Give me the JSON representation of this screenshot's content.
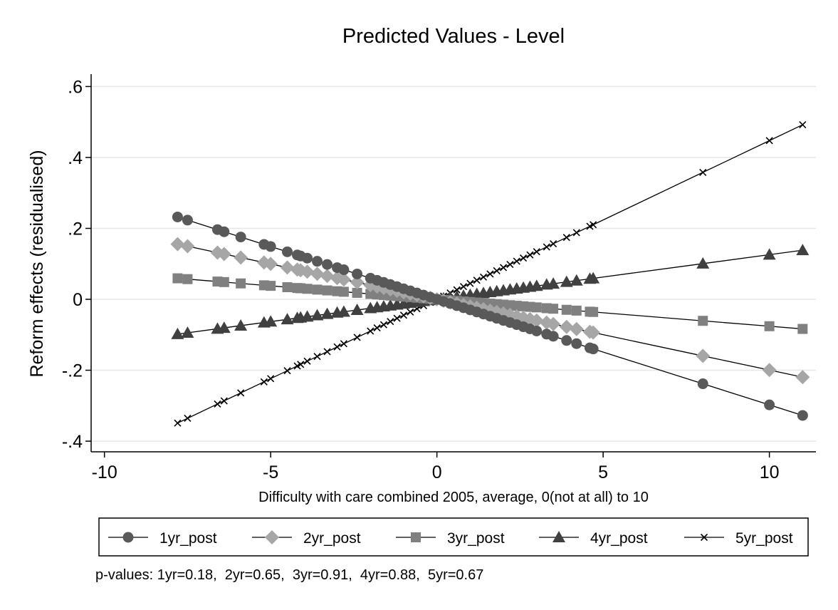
{
  "chart_data": {
    "type": "line",
    "title": "Predicted Values - Level",
    "xlabel": "Difficulty with care combined 2005, average, 0(not at all) to 10",
    "ylabel": "Reform effects (residualised)",
    "xlim": [
      -10.4,
      11.4
    ],
    "ylim": [
      -0.43,
      0.635
    ],
    "xticks": [
      -10,
      -5,
      0,
      5,
      10
    ],
    "xtick_labels": [
      "-10",
      "-5",
      "0",
      "5",
      "10"
    ],
    "yticks": [
      0.6,
      0.4,
      0.2,
      0,
      -0.2,
      -0.4
    ],
    "ytick_labels": [
      ".6",
      ".4",
      ".2",
      "0",
      "-.2",
      "-.4"
    ],
    "grid": true,
    "legend_position": "bottom",
    "x": [
      -7.8,
      -7.5,
      -6.6,
      -6.4,
      -5.9,
      -5.2,
      -5.0,
      -4.5,
      -4.2,
      -4.1,
      -3.9,
      -3.6,
      -3.3,
      -3.0,
      -2.8,
      -2.4,
      -2.0,
      -1.8,
      -1.6,
      -1.4,
      -1.2,
      -1.0,
      -0.8,
      -0.6,
      -0.4,
      -0.2,
      0.0,
      0.2,
      0.4,
      0.6,
      0.8,
      1.0,
      1.2,
      1.4,
      1.6,
      1.8,
      2.0,
      2.2,
      2.4,
      2.6,
      2.8,
      3.0,
      3.3,
      3.5,
      3.9,
      4.2,
      4.6,
      4.7,
      8.0,
      10.0,
      11.0
    ],
    "series": [
      {
        "name": "1yr_post",
        "marker": "circle",
        "color": "#595959",
        "slope": -0.02977
      },
      {
        "name": "2yr_post",
        "marker": "diamond",
        "color": "#a6a6a6",
        "slope": -0.01995
      },
      {
        "name": "3yr_post",
        "marker": "square",
        "color": "#808080",
        "slope": -0.00759
      },
      {
        "name": "4yr_post",
        "marker": "triangle",
        "color": "#404040",
        "slope": 0.01258
      },
      {
        "name": "5yr_post",
        "marker": "x",
        "color": "#000000",
        "slope": 0.04474
      }
    ]
  },
  "note": "p-values: 1yr=0.18,  2yr=0.65,  3yr=0.91,  4yr=0.88,  5yr=0.67"
}
